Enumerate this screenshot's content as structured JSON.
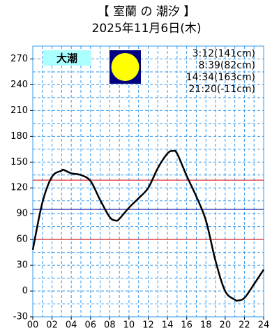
{
  "chart_data": {
    "type": "line",
    "title": "【 室蘭 の 潮汐 】",
    "subtitle": "2025年11月6日(木)",
    "tide_name": "大潮",
    "tide_times": [
      "3:12(141cm)",
      "8:39(82cm)",
      "14:34(163cm)",
      "21:20(-11cm)"
    ],
    "x": [
      0,
      1,
      2,
      3,
      3.2,
      4,
      5,
      6,
      7,
      8,
      8.65,
      9,
      10,
      11,
      12,
      13,
      14,
      14.57,
      15,
      16,
      17,
      18,
      19,
      20,
      21,
      21.33,
      22,
      23,
      24
    ],
    "series": [
      {
        "color": "#000000",
        "values": [
          48,
          103,
          133,
          140,
          141,
          137,
          135,
          128,
          106,
          86,
          82,
          84,
          97,
          108,
          120,
          143,
          160,
          163,
          160,
          134,
          110,
          82,
          35,
          0,
          -10,
          -11,
          -8,
          8,
          25
        ]
      }
    ],
    "xlim": [
      0,
      24
    ],
    "ylim": [
      -30,
      285
    ],
    "xticks": [
      {
        "value": 0,
        "label": "00"
      },
      {
        "value": 2,
        "label": "02"
      },
      {
        "value": 4,
        "label": "04"
      },
      {
        "value": 6,
        "label": "06"
      },
      {
        "value": 8,
        "label": "08"
      },
      10,
      12,
      14,
      16,
      18,
      20,
      22,
      24
    ],
    "yticks": [
      -30,
      0,
      30,
      60,
      90,
      120,
      150,
      180,
      210,
      240,
      270
    ],
    "x_minor_ticks": [
      1,
      3,
      5,
      7,
      9,
      11,
      13,
      15,
      17,
      19,
      21,
      23
    ],
    "y_minor_ticks": [
      -15,
      15,
      45,
      75,
      105,
      135,
      165,
      195,
      225,
      255
    ],
    "reference_lines": [
      {
        "value": 129,
        "color": "#e03030"
      },
      {
        "value": 95,
        "color": "#2020a0"
      },
      {
        "value": 60,
        "color": "#e03030"
      }
    ],
    "grid": true,
    "grid_color": "#3399ee"
  }
}
